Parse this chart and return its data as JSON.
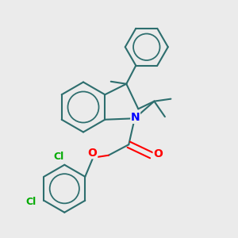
{
  "background_color": "#ebebeb",
  "bond_color": "#2d6e6e",
  "bond_width": 1.5,
  "atom_colors": {
    "N": "#0000ff",
    "O": "#ff0000",
    "Cl": "#00aa00",
    "C": "#2d6e6e"
  },
  "figsize": [
    3.0,
    3.0
  ],
  "dpi": 100,
  "xlim": [
    0,
    10
  ],
  "ylim": [
    0,
    10
  ]
}
